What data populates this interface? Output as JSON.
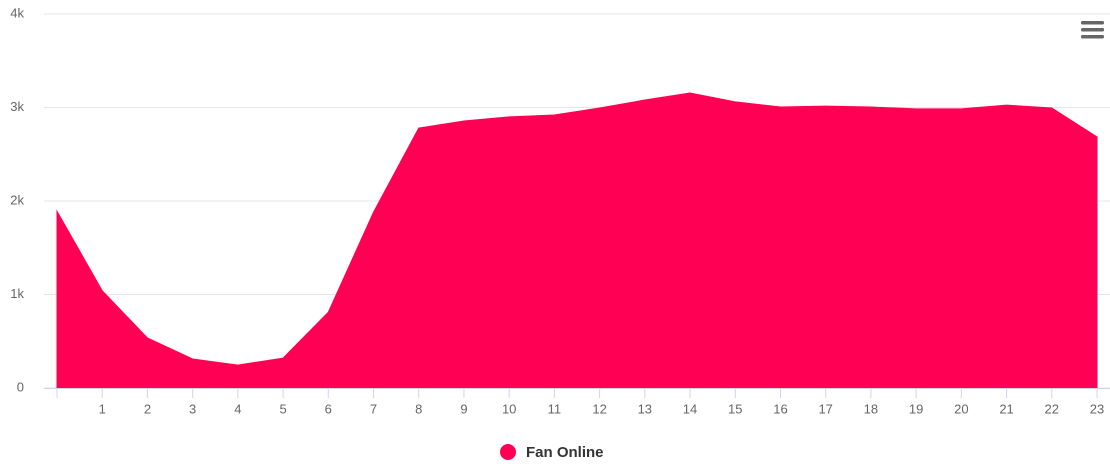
{
  "chart_data": {
    "type": "area",
    "categories": [
      null,
      "1",
      "2",
      "3",
      "4",
      "5",
      "6",
      "7",
      "8",
      "9",
      "10",
      "11",
      "12",
      "13",
      "14",
      "15",
      "16",
      "17",
      "18",
      "19",
      "20",
      "21",
      "22",
      "23"
    ],
    "series": [
      {
        "name": "Fan Online",
        "color": "#ff0055",
        "values": [
          1890,
          1040,
          535,
          310,
          245,
          320,
          810,
          1880,
          2780,
          2855,
          2900,
          2920,
          2995,
          3080,
          3155,
          3060,
          3005,
          3015,
          3005,
          2985,
          2985,
          3025,
          2995,
          2685
        ]
      }
    ],
    "ylim": [
      0,
      4000
    ],
    "yticks": [
      0,
      {
        "value": 1000,
        "label": "1k"
      },
      {
        "value": 2000,
        "label": "2k"
      },
      {
        "value": 3000,
        "label": "3k"
      },
      {
        "value": 4000,
        "label": "4k"
      }
    ],
    "grid": true,
    "legend": "bottom"
  }
}
